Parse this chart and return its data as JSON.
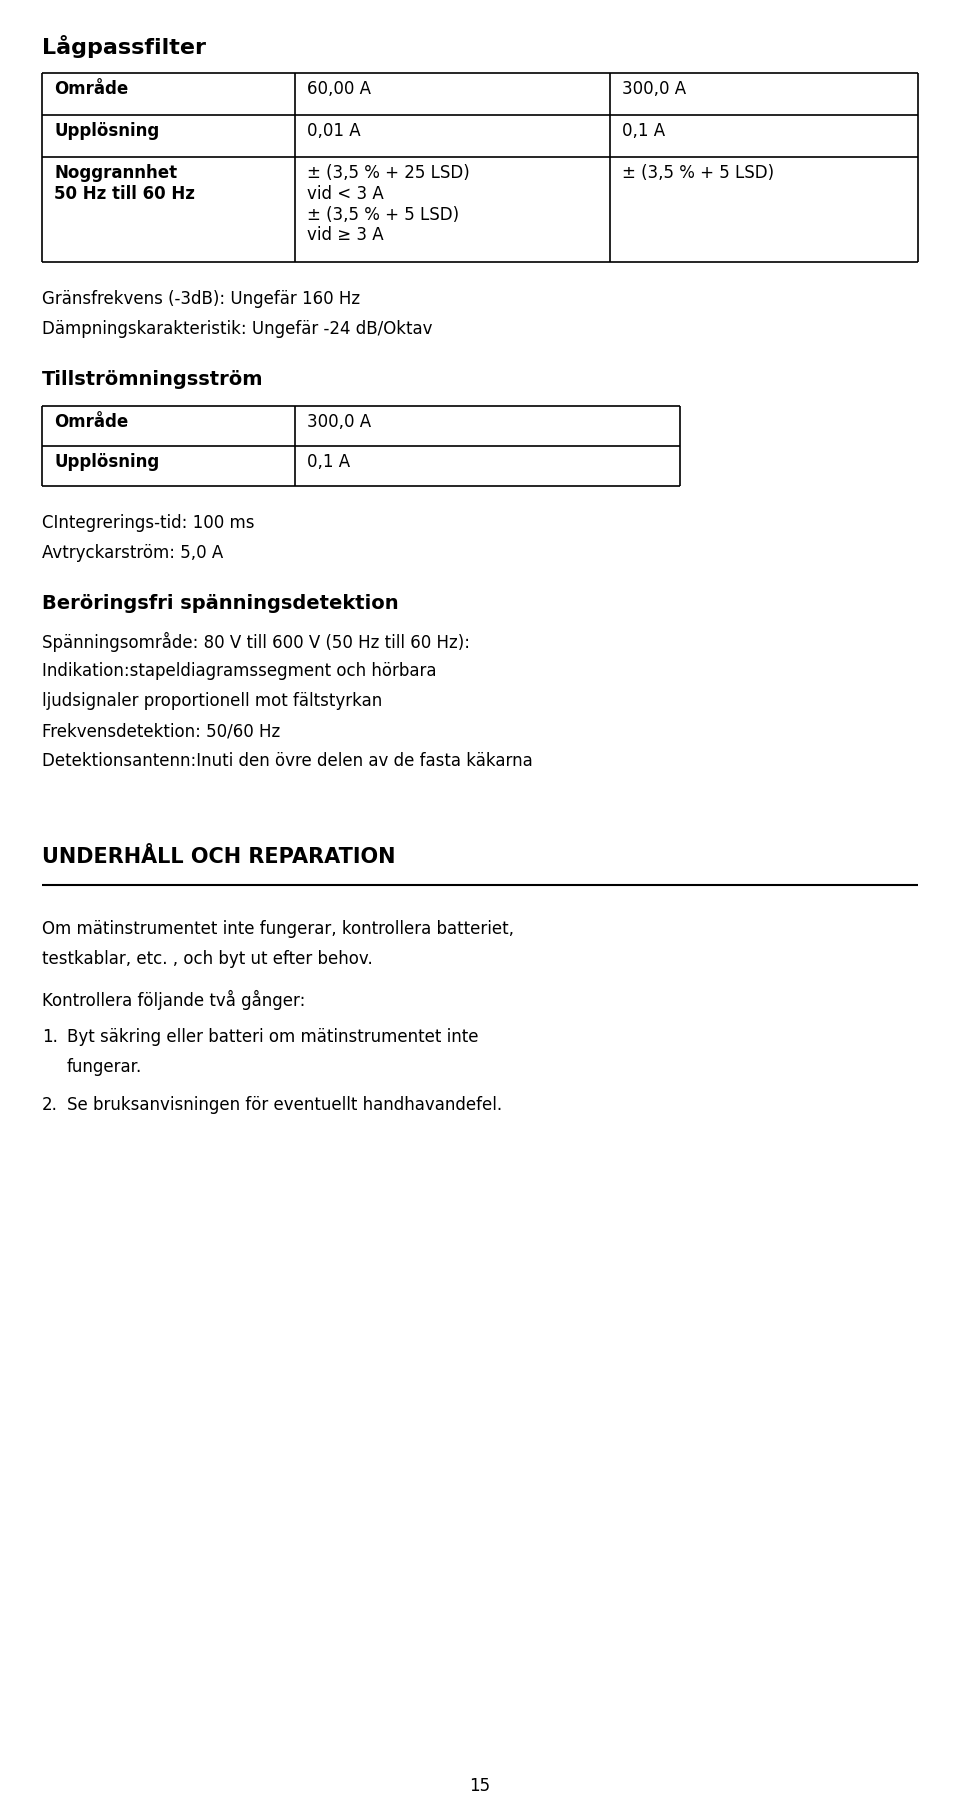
{
  "bg_color": "#ffffff",
  "text_color": "#000000",
  "section1_title": "Lågpassfilter",
  "grens_text": "Gränsfrekvens (-3dB): Ungefär 160 Hz",
  "dampning_text": "Dämpningskarakteristik: Ungefär -24 dB/Oktav",
  "section2_title": "Tillströmningsström",
  "cintegrering_text": "CIntegrerings­tid: 100 ms",
  "avtryckar_text": "Avtryckarström: 5,0 A",
  "section3_title": "Beröringsfri spänningsdetektion",
  "section3_lines": [
    "Spänningsområde: 80 V till 600 V (50 Hz till 60 Hz):",
    "Indikation:stapeldiagramssegment och hörbara",
    "ljudsignaler proportionell mot fältstyrkan",
    "Frekvensdetektion: 50/60 Hz",
    "Detektionsantenn:Inuti den övre delen av de fasta käkarna"
  ],
  "section4_title": "UNDERHÅLL OCH REPARATION",
  "section4_para1_l1": "Om mätinstrumentet inte fungerar, kontrollera batteriet,",
  "section4_para1_l2": "testkablar, etc. , och byt ut efter behov.",
  "section4_para2": "Kontrollera följande två gånger:",
  "item1_l1": "Byt säkring eller batteri om mätinstrumentet inte",
  "item1_l2": "fungerar.",
  "item2": "Se bruksanvisningen för eventuellt handhavandefel.",
  "page_number": "15"
}
